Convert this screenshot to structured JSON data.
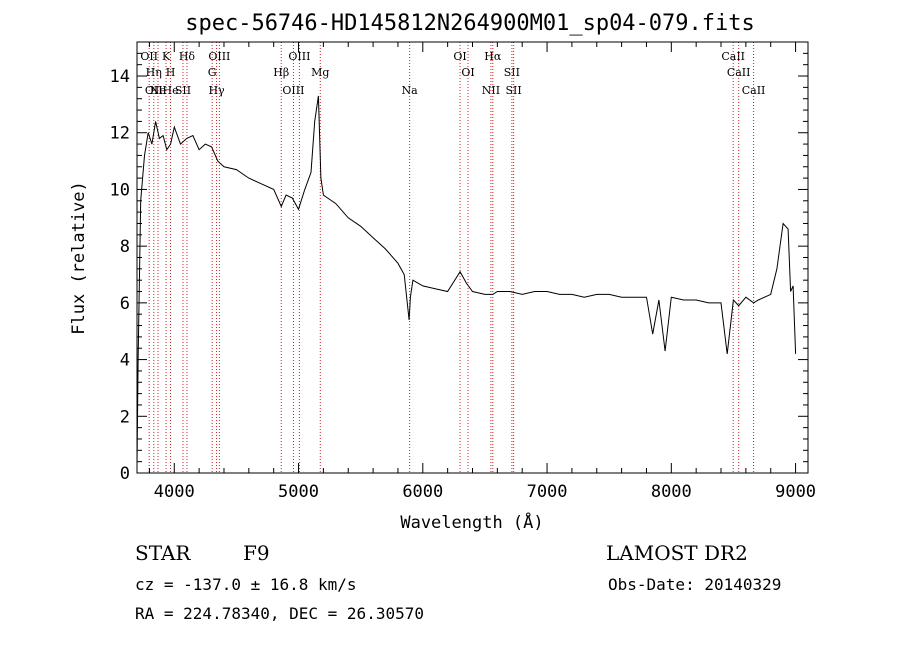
{
  "chart_data": {
    "type": "line",
    "title": "spec-56746-HD145812N264900M01_sp04-079.fits",
    "xlabel": "Wavelength (Å)",
    "ylabel": "Flux (relative)",
    "xlim": [
      3700,
      9100
    ],
    "ylim": [
      0,
      15.2
    ],
    "xticks": [
      4000,
      5000,
      6000,
      7000,
      8000,
      9000
    ],
    "yticks": [
      0,
      2,
      4,
      6,
      8,
      10,
      12,
      14
    ],
    "grid": false,
    "legend": "none",
    "series": [
      {
        "x": [
          3700,
          3710,
          3730,
          3760,
          3790,
          3820,
          3850,
          3880,
          3910,
          3940,
          3970,
          4000,
          4050,
          4100,
          4150,
          4200,
          4250,
          4300,
          4350,
          4400,
          4500,
          4600,
          4700,
          4800,
          4861,
          4900,
          4950,
          5000,
          5050,
          5100,
          5130,
          5160,
          5180,
          5200,
          5300,
          5400,
          5500,
          5600,
          5700,
          5800,
          5850,
          5890,
          5900,
          5920,
          6000,
          6100,
          6200,
          6300,
          6350,
          6400,
          6500,
          6563,
          6600,
          6700,
          6800,
          6900,
          7000,
          7100,
          7200,
          7300,
          7400,
          7500,
          7600,
          7700,
          7800,
          7850,
          7900,
          7950,
          8000,
          8100,
          8200,
          8300,
          8400,
          8450,
          8500,
          8542,
          8600,
          8662,
          8700,
          8800,
          8850,
          8900,
          8940,
          8960,
          8980,
          9000
        ],
        "y": [
          0.3,
          4.2,
          9.6,
          11.2,
          12.0,
          11.6,
          12.4,
          11.8,
          11.9,
          11.4,
          11.6,
          12.2,
          11.6,
          11.8,
          11.9,
          11.4,
          11.6,
          11.5,
          11.0,
          10.8,
          10.7,
          10.4,
          10.2,
          10.0,
          9.4,
          9.8,
          9.7,
          9.3,
          10.0,
          10.6,
          12.4,
          13.3,
          10.4,
          9.8,
          9.5,
          9.0,
          8.7,
          8.3,
          7.9,
          7.4,
          7.0,
          5.4,
          6.2,
          6.8,
          6.6,
          6.5,
          6.4,
          7.1,
          6.7,
          6.4,
          6.3,
          6.3,
          6.4,
          6.4,
          6.3,
          6.4,
          6.4,
          6.3,
          6.3,
          6.2,
          6.3,
          6.3,
          6.2,
          6.2,
          6.2,
          4.9,
          6.1,
          4.3,
          6.2,
          6.1,
          6.1,
          6.0,
          6.0,
          4.2,
          6.1,
          5.9,
          6.2,
          6.0,
          6.1,
          6.3,
          7.2,
          8.8,
          8.6,
          6.4,
          6.6,
          4.2
        ]
      }
    ],
    "lines": [
      {
        "wl": 3798,
        "labels": [
          "OII"
        ]
      },
      {
        "wl": 3835,
        "labels": [
          "Hη",
          "OII"
        ]
      },
      {
        "wl": 3869,
        "labels": [
          "Ne"
        ]
      },
      {
        "wl": 3934,
        "labels": [
          "K"
        ]
      },
      {
        "wl": 3970,
        "labels": [
          "H",
          "He"
        ]
      },
      {
        "wl": 4070,
        "labels": [
          "SII"
        ]
      },
      {
        "wl": 4102,
        "labels": [
          "Hδ"
        ]
      },
      {
        "wl": 4305,
        "labels": [
          "G"
        ]
      },
      {
        "wl": 4340,
        "labels": [
          "Hγ"
        ]
      },
      {
        "wl": 4363,
        "labels": [
          "OIII"
        ]
      },
      {
        "wl": 4861,
        "labels": [
          "Hβ"
        ]
      },
      {
        "wl": 4959,
        "labels": [
          "OIII"
        ]
      },
      {
        "wl": 5007,
        "labels": [
          "OIII"
        ]
      },
      {
        "wl": 5175,
        "labels": [
          "Mg"
        ]
      },
      {
        "wl": 5894,
        "labels": [
          "Na"
        ]
      },
      {
        "wl": 6300,
        "labels": [
          "OI"
        ]
      },
      {
        "wl": 6364,
        "labels": [
          "OI"
        ]
      },
      {
        "wl": 6548,
        "labels": [
          "NII"
        ]
      },
      {
        "wl": 6563,
        "labels": [
          "Hα"
        ]
      },
      {
        "wl": 6717,
        "labels": [
          "SII"
        ]
      },
      {
        "wl": 6731,
        "labels": [
          "SII"
        ]
      },
      {
        "wl": 8498,
        "labels": [
          "CaII"
        ]
      },
      {
        "wl": 8542,
        "labels": [
          "CaII"
        ]
      },
      {
        "wl": 8662,
        "labels": [
          "CaII"
        ]
      }
    ]
  },
  "info": {
    "class": "STAR",
    "subclass": "F9",
    "survey": "LAMOST DR2",
    "cz": "cz = -137.0 ± 16.8 km/s",
    "obs_date": "Obs-Date: 20140329",
    "coords": "RA = 224.78340, DEC =  26.30570"
  },
  "colors": {
    "spectrum": "#000000",
    "line_markers": "#cc2222",
    "axes": "#000000"
  }
}
